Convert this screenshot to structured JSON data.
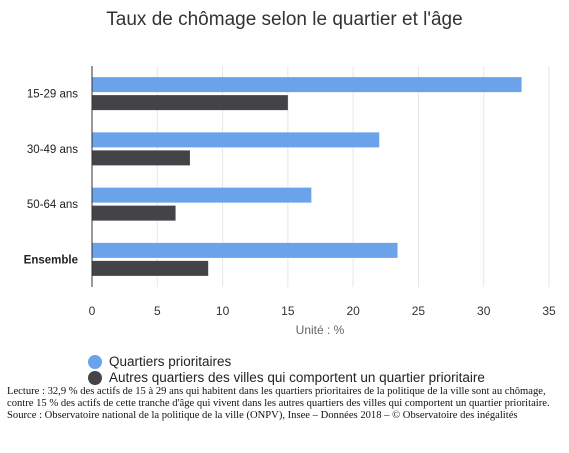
{
  "chart_data": {
    "type": "bar",
    "orientation": "horizontal",
    "title": "Taux de chômage selon le quartier et l'âge",
    "xlabel": "Unité : %",
    "ylabel": "",
    "categories": [
      "15-29 ans",
      "30-49 ans",
      "50-64 ans",
      "Ensemble"
    ],
    "categories_bold": [
      false,
      false,
      false,
      true
    ],
    "series": [
      {
        "name": "Quartiers prioritaires",
        "color": "#6ba3ea",
        "values": [
          32.9,
          22.0,
          16.8,
          23.4
        ]
      },
      {
        "name": "Autres quartiers des villes qui comportent un quartier prioritaire",
        "color": "#434348",
        "values": [
          15.0,
          7.5,
          6.4,
          8.9
        ]
      }
    ],
    "xlim": [
      0,
      35
    ],
    "xticks": [
      0,
      5,
      10,
      15,
      20,
      25,
      30,
      35
    ],
    "grid": true,
    "legend_position": "bottom"
  },
  "notes": {
    "lecture": "Lecture : 32,9 % des actifs de 15 à 29 ans qui habitent dans les quartiers prioritaires de la politique de la ville sont au chômage, contre 15 % des actifs de cette tranche d'âge qui vivent dans les autres quartiers des villes qui comportent un quartier prioritaire.",
    "source": "Source : Observatoire national de la politique de la ville (ONPV), Insee – Données 2018 – © Observatoire des inégalités"
  }
}
